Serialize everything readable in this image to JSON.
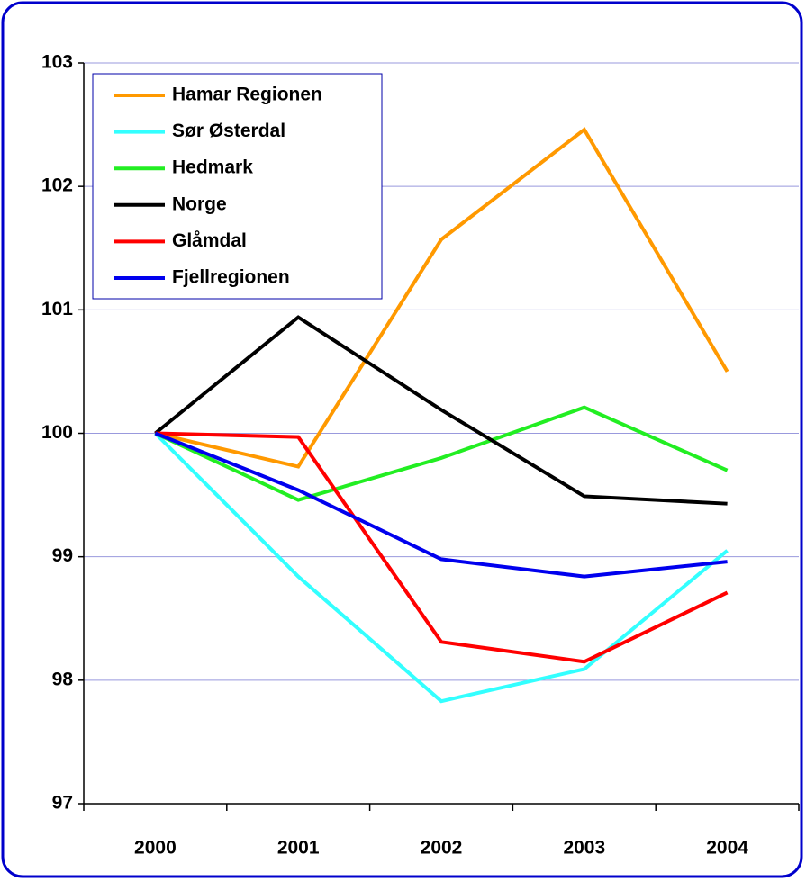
{
  "chart_data": {
    "type": "line",
    "categories": [
      "2000",
      "2001",
      "2002",
      "2003",
      "2004"
    ],
    "series": [
      {
        "name": "Hamar Regionen",
        "color": "#ff9900",
        "values": [
          100,
          99.73,
          101.57,
          102.46,
          100.5
        ]
      },
      {
        "name": "Sør Østerdal",
        "color": "#33ffff",
        "values": [
          100,
          98.84,
          97.83,
          98.09,
          99.05
        ]
      },
      {
        "name": "Hedmark",
        "color": "#22ee22",
        "values": [
          100,
          99.46,
          99.8,
          100.21,
          99.7
        ]
      },
      {
        "name": "Norge",
        "color": "#000000",
        "values": [
          100,
          100.94,
          100.19,
          99.49,
          99.43
        ]
      },
      {
        "name": "Glåmdal",
        "color": "#ff0000",
        "values": [
          100,
          99.97,
          98.31,
          98.15,
          98.71
        ]
      },
      {
        "name": "Fjellregionen",
        "color": "#0000ee",
        "values": [
          100,
          99.54,
          98.98,
          98.84,
          98.96
        ]
      }
    ],
    "ylim": [
      97,
      103
    ],
    "yticks": [
      97,
      98,
      99,
      100,
      101,
      102,
      103
    ],
    "grid": true,
    "legend": "top-left"
  }
}
